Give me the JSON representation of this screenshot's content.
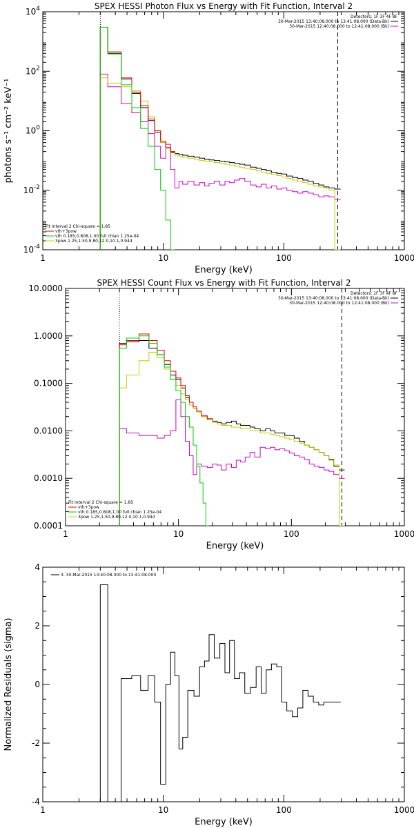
{
  "colors": {
    "black": "#000000",
    "red": "#e00000",
    "green": "#00cc00",
    "yellow": "#c8c800",
    "magenta": "#cc00cc"
  },
  "chart_data": [
    {
      "type": "line",
      "title": "SPEX HESSI Photon Flux vs Energy with Fit Function, Interval 2",
      "xlabel": "Energy (keV)",
      "ylabel": "photons s⁻¹ cm⁻² keV⁻¹",
      "xscale": "log",
      "yscale": "log",
      "xlim": [
        1,
        1000
      ],
      "ylim": [
        0.0001,
        10000
      ],
      "x_ticks": [
        "1",
        "10",
        "100",
        "1000"
      ],
      "y_ticks": [
        {
          "v": 0.0001,
          "b": "10",
          "e": "-4"
        },
        {
          "v": 0.01,
          "b": "10",
          "e": "-2"
        },
        {
          "v": 1,
          "b": "10",
          "e": "0"
        },
        {
          "v": 100,
          "b": "10",
          "e": "2"
        },
        {
          "v": 10000,
          "b": "10",
          "e": "4"
        }
      ],
      "vlines": [
        {
          "x": 3,
          "style": "dotted"
        },
        {
          "x": 280,
          "style": "dashed"
        }
      ],
      "legend_tr": [
        "Detectors: 1F 3F 4F 8F",
        "30-Mar-2015 13:40:08.000 to 13:41:08.000 (Data-Bk)",
        "30-Mar-2015 12:40:08.000 to 12:41:08.000 (Bk)"
      ],
      "legend_bl": [
        "Fit Interval 2   Chi-square = 1.85",
        "vth+3pow",
        "vth 0.185,0.808,1.00  full chian 1.25e-04",
        "3pow 1.25,1.50,9.80,12.0,10.1,0.944"
      ],
      "series": [
        {
          "color": "black",
          "x": [
            3,
            4,
            5,
            6,
            7,
            8,
            9,
            10,
            11,
            12,
            13,
            14,
            15,
            17,
            19,
            21,
            23,
            25,
            28,
            31,
            34,
            37,
            41,
            45,
            50,
            56,
            62,
            68,
            75,
            83,
            92,
            100,
            112,
            124,
            137,
            151,
            167,
            185,
            205,
            225,
            250,
            280
          ],
          "y": [
            3000,
            400,
            55,
            18,
            6,
            2.2,
            0.9,
            0.4,
            0.25,
            0.19,
            0.17,
            0.16,
            0.15,
            0.14,
            0.13,
            0.12,
            0.11,
            0.105,
            0.1,
            0.095,
            0.09,
            0.085,
            0.08,
            0.075,
            0.07,
            0.06,
            0.055,
            0.05,
            0.045,
            0.04,
            0.037,
            0.035,
            0.03,
            0.027,
            0.025,
            0.022,
            0.02,
            0.017,
            0.015,
            0.013,
            0.012,
            0.011
          ]
        },
        {
          "color": "red",
          "x": [
            3,
            4,
            5,
            6,
            7,
            8,
            9,
            10,
            11,
            12
          ],
          "y": [
            3000,
            450,
            60,
            20,
            7,
            2.5,
            1.0,
            0.45,
            0.28,
            0.2
          ]
        },
        {
          "color": "green",
          "x": [
            3,
            4,
            5,
            6,
            7,
            8,
            9,
            10,
            11,
            12
          ],
          "y": [
            3000,
            380,
            35,
            6,
            1.2,
            0.3,
            0.05,
            0.01,
            0.001,
            0.0001
          ]
        },
        {
          "color": "yellow",
          "x": [
            3,
            4,
            5,
            6,
            7,
            8,
            9,
            10,
            11,
            12,
            13,
            14,
            15,
            17,
            19,
            21,
            23,
            25,
            28,
            31,
            34,
            37,
            41,
            45,
            50,
            56,
            62,
            68,
            75,
            83,
            92,
            100,
            112,
            124,
            137,
            151,
            167,
            185,
            205,
            225,
            250,
            280
          ],
          "y": [
            60,
            40,
            30,
            22,
            10,
            3,
            1.0,
            0.4,
            0.25,
            0.18,
            0.15,
            0.14,
            0.13,
            0.12,
            0.11,
            0.1,
            0.095,
            0.09,
            0.085,
            0.08,
            0.075,
            0.07,
            0.065,
            0.06,
            0.055,
            0.05,
            0.045,
            0.04,
            0.037,
            0.034,
            0.031,
            0.028,
            0.025,
            0.022,
            0.02,
            0.018,
            0.016,
            0.014,
            0.013,
            0.012,
            0.01,
            0.0001
          ]
        },
        {
          "color": "magenta",
          "x": [
            3,
            4,
            5,
            6,
            7,
            8,
            9,
            10,
            11,
            12,
            13,
            14,
            15,
            17,
            19,
            21,
            23,
            25,
            28,
            31,
            34,
            37,
            41,
            45,
            50,
            56,
            62,
            68,
            75,
            83,
            92,
            100,
            112,
            124,
            137,
            151,
            167,
            185,
            205,
            225,
            250,
            280
          ],
          "y": [
            80,
            30,
            8,
            4,
            2,
            0.8,
            0.3,
            0.12,
            0.35,
            0.05,
            0.012,
            0.02,
            0.016,
            0.02,
            0.015,
            0.018,
            0.014,
            0.017,
            0.02,
            0.015,
            0.02,
            0.018,
            0.022,
            0.025,
            0.02,
            0.015,
            0.013,
            0.016,
            0.012,
            0.014,
            0.011,
            0.012,
            0.01,
            0.009,
            0.008,
            0.009,
            0.008,
            0.007,
            0.006,
            0.0065,
            0.006,
            0.005
          ]
        }
      ]
    },
    {
      "type": "line",
      "title": "SPEX HESSI Count Flux vs Energy with Fit Function, Interval 2",
      "xlabel": "Energy (keV)",
      "ylabel": "",
      "xscale": "log",
      "yscale": "log",
      "xlim": [
        1,
        1000
      ],
      "ylim": [
        0.0001,
        10
      ],
      "x_ticks": [
        "1",
        "10",
        "100",
        "1000"
      ],
      "y_ticks": [
        {
          "v": 0.0001,
          "t": "0.0001"
        },
        {
          "v": 0.001,
          "t": "0.0010"
        },
        {
          "v": 0.01,
          "t": "0.0100"
        },
        {
          "v": 0.1,
          "t": "0.1000"
        },
        {
          "v": 1,
          "t": "1.0000"
        },
        {
          "v": 10,
          "t": "10.0000"
        }
      ],
      "vlines": [
        {
          "x": 3,
          "style": "dotted"
        },
        {
          "x": 280,
          "style": "dashed"
        }
      ],
      "legend_tr": [
        "Detectors: 1F 3F 4F 8F",
        "30-Mar-2015 13:40:08.000 to 13:41:08.000 (Data-Bk)",
        "30-Mar-2015 12:40:08.000 to 12:41:08.000 (Bk)"
      ],
      "legend_bl": [
        "Fit Interval 2   Chi-square = 1.85",
        "vth+3pow",
        "vth 0.185,0.808,1.00  full chian 1.25e-04",
        "3pow 1.25,1.50,9.80,12.0,10.1,0.944"
      ],
      "series": [
        {
          "color": "black",
          "x": [
            3,
            4,
            5,
            6,
            7,
            8,
            9,
            10,
            11,
            12,
            13,
            14,
            15,
            17,
            19,
            21,
            23,
            25,
            28,
            31,
            34,
            37,
            41,
            45,
            50,
            56,
            62,
            68,
            75,
            83,
            92,
            100,
            112,
            124,
            137,
            151,
            167,
            185,
            205,
            225,
            250,
            280
          ],
          "y": [
            0.7,
            0.75,
            0.8,
            0.55,
            0.4,
            0.25,
            0.15,
            0.12,
            0.08,
            0.05,
            0.035,
            0.03,
            0.025,
            0.02,
            0.018,
            0.016,
            0.015,
            0.014,
            0.015,
            0.016,
            0.014,
            0.013,
            0.013,
            0.012,
            0.011,
            0.01,
            0.011,
            0.01,
            0.009,
            0.009,
            0.008,
            0.008,
            0.007,
            0.006,
            0.005,
            0.0045,
            0.004,
            0.0035,
            0.003,
            0.0025,
            0.0018,
            0.0015
          ]
        },
        {
          "color": "red",
          "x": [
            3,
            4,
            5,
            6,
            7,
            8,
            9,
            10,
            11,
            12,
            13,
            14,
            15,
            17,
            19
          ],
          "y": [
            0.65,
            0.8,
            1.1,
            0.8,
            0.5,
            0.3,
            0.18,
            0.13,
            0.09,
            0.055,
            0.04,
            0.032,
            0.026,
            0.021,
            0.018
          ]
        },
        {
          "color": "green",
          "x": [
            3,
            4,
            5,
            6,
            7,
            8,
            9,
            10,
            11,
            12,
            13,
            14,
            15,
            16,
            17,
            18
          ],
          "y": [
            0.55,
            0.9,
            1.0,
            0.7,
            0.4,
            0.22,
            0.12,
            0.07,
            0.04,
            0.02,
            0.012,
            0.005,
            0.0018,
            0.0008,
            0.0003,
            0.0001
          ]
        },
        {
          "color": "yellow",
          "x": [
            3,
            4,
            5,
            6,
            7,
            8,
            9,
            10,
            11,
            12,
            13,
            14,
            15,
            17,
            19,
            21,
            23,
            25,
            28,
            31,
            34,
            37,
            41,
            45,
            50,
            56,
            62,
            68,
            75,
            83,
            92,
            100,
            112,
            124,
            137,
            151,
            167,
            185,
            205,
            225,
            250,
            280
          ],
          "y": [
            0.08,
            0.15,
            0.3,
            0.45,
            0.35,
            0.2,
            0.12,
            0.09,
            0.06,
            0.045,
            0.035,
            0.03,
            0.025,
            0.02,
            0.017,
            0.015,
            0.014,
            0.013,
            0.013,
            0.012,
            0.012,
            0.011,
            0.011,
            0.01,
            0.01,
            0.009,
            0.009,
            0.0085,
            0.008,
            0.0075,
            0.007,
            0.0065,
            0.006,
            0.0055,
            0.005,
            0.0045,
            0.004,
            0.0035,
            0.003,
            0.0024,
            0.0019,
            0.0001
          ]
        },
        {
          "color": "magenta",
          "x": [
            3,
            4,
            5,
            6,
            7,
            8,
            9,
            10,
            11,
            12,
            13,
            14,
            15,
            17,
            19,
            21,
            23,
            25,
            28,
            31,
            34,
            37,
            41,
            45,
            50,
            56,
            62,
            68,
            75,
            83,
            92,
            100,
            112,
            124,
            137,
            151,
            167,
            185,
            205,
            225,
            250,
            280
          ],
          "y": [
            0.011,
            0.009,
            0.008,
            0.008,
            0.007,
            0.008,
            0.01,
            0.045,
            0.02,
            0.006,
            0.003,
            0.0012,
            0.002,
            0.0018,
            0.0017,
            0.002,
            0.0019,
            0.0015,
            0.002,
            0.0017,
            0.0024,
            0.0022,
            0.0028,
            0.0035,
            0.0028,
            0.0045,
            0.0042,
            0.0045,
            0.004,
            0.0042,
            0.0038,
            0.0034,
            0.003,
            0.0028,
            0.0025,
            0.002,
            0.0018,
            0.0017,
            0.0015,
            0.0014,
            0.0012,
            0.001
          ]
        }
      ]
    },
    {
      "type": "line",
      "title": "",
      "xlabel": "Energy (keV)",
      "ylabel": "Normalized Residuals (sigma)",
      "xscale": "log",
      "yscale": "linear",
      "xlim": [
        1,
        1000
      ],
      "ylim": [
        -4,
        4
      ],
      "x_ticks": [
        "1",
        "10",
        "100",
        "1000"
      ],
      "y_ticks": [
        {
          "v": -4,
          "t": "-4"
        },
        {
          "v": -2,
          "t": "-2"
        },
        {
          "v": 0,
          "t": "0"
        },
        {
          "v": 2,
          "t": "2"
        },
        {
          "v": 4,
          "t": "4"
        }
      ],
      "vlines": [],
      "legend_tr": [],
      "legend_bl": [],
      "legend_tl": "3. 30-Mar-2015 13:40:08.000 to 13:41:08.000",
      "series": [
        {
          "color": "black",
          "x": [
            3,
            4,
            5,
            6,
            7,
            8,
            9,
            10,
            11,
            12,
            13,
            14,
            15,
            17,
            19,
            21,
            23,
            25,
            28,
            31,
            34,
            37,
            41,
            45,
            50,
            56,
            62,
            68,
            75,
            83,
            92,
            100,
            112,
            124,
            137,
            151,
            167,
            185,
            205,
            225,
            250,
            280
          ],
          "y": [
            3.4,
            -4.0,
            0.2,
            0.3,
            -0.2,
            0.3,
            -0.6,
            -3.4,
            0.0,
            1.1,
            0.3,
            -2.2,
            -1.8,
            -0.2,
            -0.4,
            0.6,
            0.8,
            1.7,
            0.9,
            1.4,
            0.4,
            1.5,
            0.2,
            0.4,
            -0.3,
            -0.1,
            0.6,
            -0.3,
            0.5,
            0.7,
            0.6,
            -0.6,
            -0.9,
            -1.1,
            -0.8,
            -0.2,
            -0.4,
            -0.6,
            -0.7,
            -0.6,
            -0.6,
            -0.6
          ]
        }
      ]
    }
  ]
}
